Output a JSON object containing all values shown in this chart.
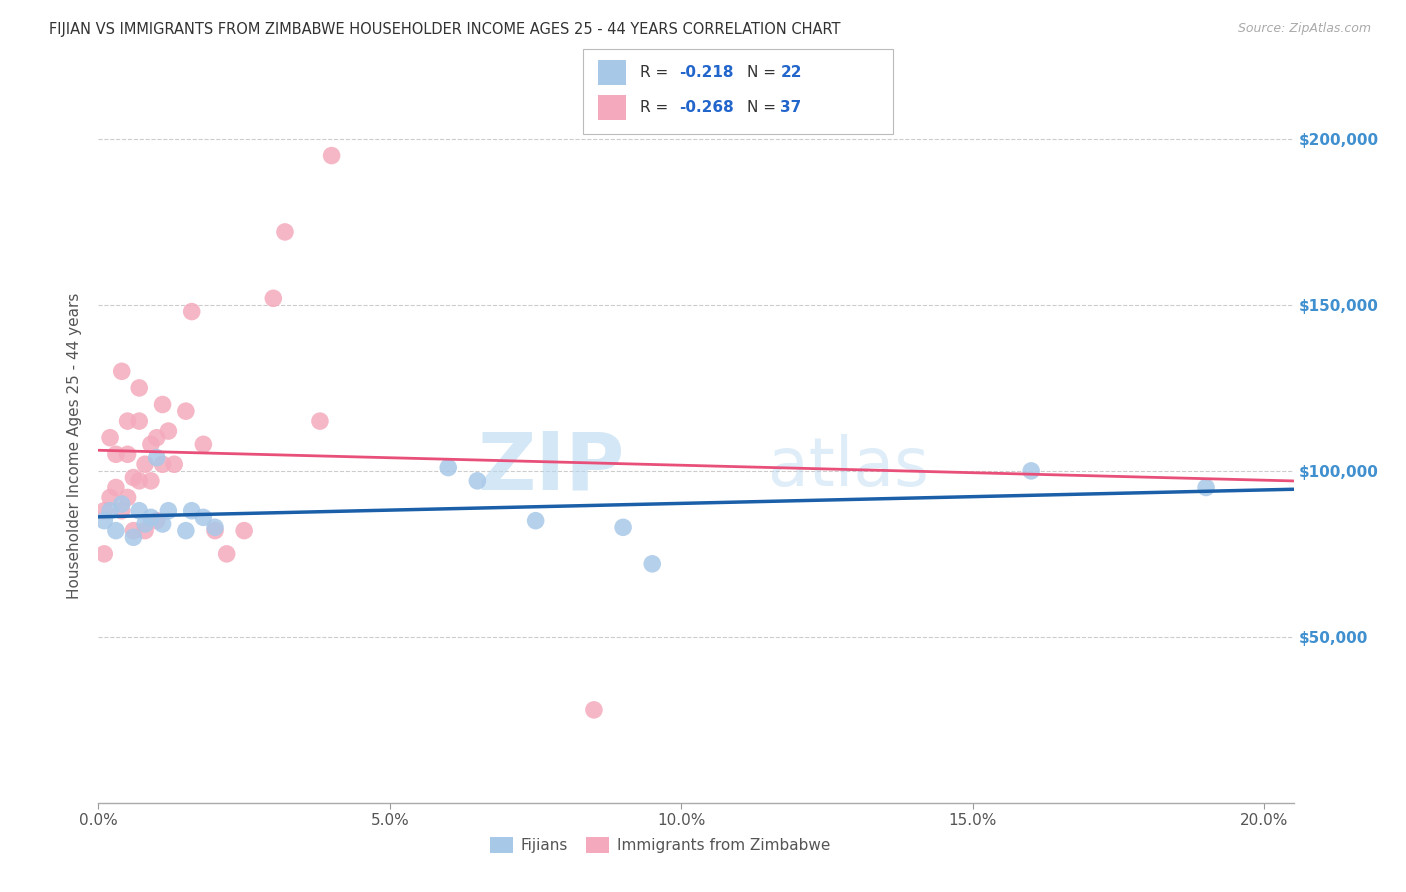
{
  "title": "FIJIAN VS IMMIGRANTS FROM ZIMBABWE HOUSEHOLDER INCOME AGES 25 - 44 YEARS CORRELATION CHART",
  "source": "Source: ZipAtlas.com",
  "ylabel": "Householder Income Ages 25 - 44 years",
  "xlabel_ticks": [
    "0.0%",
    "5.0%",
    "10.0%",
    "15.0%",
    "20.0%"
  ],
  "xlabel_vals": [
    0.0,
    0.05,
    0.1,
    0.15,
    0.2
  ],
  "ytick_labels": [
    "$50,000",
    "$100,000",
    "$150,000",
    "$200,000"
  ],
  "ytick_vals": [
    50000,
    100000,
    150000,
    200000
  ],
  "xlim": [
    0.0,
    0.205
  ],
  "ylim": [
    0,
    215000
  ],
  "fijian_color": "#a8c8e8",
  "fijian_line_color": "#1a5fa8",
  "zimbabwe_color": "#f4aabc",
  "zimbabwe_line_color": "#e8507a",
  "legend_r_fijian": "-0.218",
  "legend_n_fijian": "22",
  "legend_r_zimbabwe": "-0.268",
  "legend_n_zimbabwe": "37",
  "fijian_x": [
    0.001,
    0.002,
    0.003,
    0.004,
    0.006,
    0.007,
    0.008,
    0.009,
    0.01,
    0.011,
    0.012,
    0.015,
    0.016,
    0.018,
    0.02,
    0.06,
    0.065,
    0.075,
    0.09,
    0.095,
    0.16,
    0.19
  ],
  "fijian_y": [
    85000,
    88000,
    82000,
    90000,
    80000,
    88000,
    84000,
    86000,
    104000,
    84000,
    88000,
    82000,
    88000,
    86000,
    83000,
    101000,
    97000,
    85000,
    83000,
    72000,
    100000,
    95000
  ],
  "zimbabwe_x": [
    0.001,
    0.001,
    0.002,
    0.002,
    0.003,
    0.003,
    0.004,
    0.004,
    0.005,
    0.005,
    0.005,
    0.006,
    0.006,
    0.007,
    0.007,
    0.007,
    0.008,
    0.008,
    0.009,
    0.009,
    0.01,
    0.01,
    0.011,
    0.011,
    0.012,
    0.013,
    0.015,
    0.016,
    0.018,
    0.02,
    0.022,
    0.025,
    0.03,
    0.032,
    0.038,
    0.04,
    0.085
  ],
  "zimbabwe_y": [
    75000,
    88000,
    92000,
    110000,
    95000,
    105000,
    88000,
    130000,
    92000,
    105000,
    115000,
    82000,
    98000,
    97000,
    115000,
    125000,
    82000,
    102000,
    97000,
    108000,
    85000,
    110000,
    102000,
    120000,
    112000,
    102000,
    118000,
    148000,
    108000,
    82000,
    75000,
    82000,
    152000,
    172000,
    115000,
    195000,
    28000
  ],
  "watermark_zip": "ZIP",
  "watermark_atlas": "atlas",
  "background_color": "#ffffff",
  "grid_color": "#cccccc"
}
